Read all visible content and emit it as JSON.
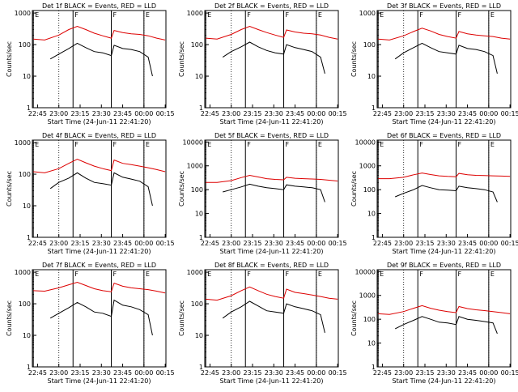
{
  "chart_data": [
    {
      "type": "line",
      "title": "Det 1f BLACK = Events, RED = LLD",
      "xlabel": "Start Time (24-Jun-11 22:41:20)",
      "ylabel": "Counts/sec",
      "x_ticks": [
        "22:45",
        "23:00",
        "23:15",
        "23:30",
        "23:45",
        "00:00",
        "00:15"
      ],
      "y_ticks": [
        "1",
        "10",
        "100",
        "1000"
      ],
      "ylim": [
        1,
        1200
      ],
      "yscale": "log",
      "markers": [
        {
          "time": "22:42",
          "label": "E"
        },
        {
          "time": "23:10",
          "label": "F"
        },
        {
          "time": "23:37",
          "label": "F"
        },
        {
          "time": "00:00",
          "label": "E"
        }
      ],
      "series": [
        {
          "name": "Events",
          "color": "#000000",
          "x": [
            "22:54",
            "23:00",
            "23:07",
            "23:13",
            "23:19",
            "23:25",
            "23:31",
            "23:37",
            "23:39",
            "23:45",
            "23:51",
            "23:57",
            "00:03",
            "00:06"
          ],
          "y": [
            35,
            50,
            75,
            110,
            80,
            60,
            55,
            45,
            95,
            75,
            70,
            60,
            40,
            10
          ]
        },
        {
          "name": "LLD",
          "color": "#dd0000",
          "x": [
            "22:42",
            "22:50",
            "23:00",
            "23:07",
            "23:13",
            "23:19",
            "23:25",
            "23:31",
            "23:37",
            "23:39",
            "23:45",
            "23:51",
            "23:57",
            "00:03",
            "00:09",
            "00:15"
          ],
          "y": [
            150,
            140,
            200,
            300,
            380,
            300,
            230,
            190,
            160,
            280,
            240,
            220,
            210,
            190,
            160,
            140
          ]
        }
      ]
    },
    {
      "type": "line",
      "title": "Det 2f BLACK = Events, RED = LLD",
      "xlabel": "Start Time (24-Jun-11 22:41:20)",
      "ylabel": "Counts/sec",
      "x_ticks": [
        "22:45",
        "23:00",
        "23:15",
        "23:30",
        "23:45",
        "00:00",
        "00:15"
      ],
      "y_ticks": [
        "1",
        "10",
        "100",
        "1000"
      ],
      "ylim": [
        1,
        1200
      ],
      "yscale": "log",
      "markers": [
        {
          "time": "22:42",
          "label": "E"
        },
        {
          "time": "23:10",
          "label": "F"
        },
        {
          "time": "23:37",
          "label": "F"
        },
        {
          "time": "00:00",
          "label": "E"
        }
      ],
      "series": [
        {
          "name": "Events",
          "color": "#000000",
          "x": [
            "22:54",
            "23:00",
            "23:07",
            "23:13",
            "23:19",
            "23:25",
            "23:31",
            "23:37",
            "23:39",
            "23:45",
            "23:51",
            "23:57",
            "00:03",
            "00:06"
          ],
          "y": [
            40,
            60,
            85,
            120,
            85,
            65,
            55,
            50,
            100,
            80,
            70,
            60,
            40,
            12
          ]
        },
        {
          "name": "LLD",
          "color": "#dd0000",
          "x": [
            "22:42",
            "22:50",
            "23:00",
            "23:07",
            "23:13",
            "23:19",
            "23:25",
            "23:31",
            "23:37",
            "23:39",
            "23:45",
            "23:51",
            "23:57",
            "00:03",
            "00:09",
            "00:15"
          ],
          "y": [
            160,
            150,
            210,
            300,
            380,
            300,
            240,
            200,
            170,
            290,
            250,
            230,
            220,
            200,
            170,
            150
          ]
        }
      ]
    },
    {
      "type": "line",
      "title": "Det 3f BLACK = Events, RED = LLD",
      "xlabel": "Start Time (24-Jun-11 22:41:20)",
      "ylabel": "Counts/sec",
      "x_ticks": [
        "22:45",
        "23:00",
        "23:15",
        "23:30",
        "23:45",
        "00:00",
        "00:15"
      ],
      "y_ticks": [
        "1",
        "10",
        "100",
        "1000"
      ],
      "ylim": [
        1,
        1200
      ],
      "yscale": "log",
      "markers": [
        {
          "time": "22:42",
          "label": "E"
        },
        {
          "time": "23:10",
          "label": "F"
        },
        {
          "time": "23:37",
          "label": "F"
        },
        {
          "time": "00:00",
          "label": "E"
        }
      ],
      "series": [
        {
          "name": "Events",
          "color": "#000000",
          "x": [
            "22:54",
            "23:00",
            "23:07",
            "23:13",
            "23:19",
            "23:25",
            "23:31",
            "23:37",
            "23:39",
            "23:45",
            "23:51",
            "23:57",
            "00:03",
            "00:06"
          ],
          "y": [
            35,
            55,
            80,
            110,
            80,
            60,
            55,
            50,
            95,
            75,
            70,
            60,
            45,
            12
          ]
        },
        {
          "name": "LLD",
          "color": "#dd0000",
          "x": [
            "22:42",
            "22:50",
            "23:00",
            "23:07",
            "23:13",
            "23:19",
            "23:25",
            "23:31",
            "23:37",
            "23:39",
            "23:45",
            "23:51",
            "23:57",
            "00:03",
            "00:09",
            "00:15"
          ],
          "y": [
            150,
            140,
            190,
            260,
            330,
            270,
            210,
            180,
            160,
            260,
            220,
            200,
            190,
            180,
            160,
            150
          ]
        }
      ]
    },
    {
      "type": "line",
      "title": "Det 4f BLACK = Events, RED = LLD",
      "xlabel": "Start Time (24-Jun-11 22:41:20)",
      "ylabel": "Counts/sec",
      "x_ticks": [
        "22:45",
        "23:00",
        "23:15",
        "23:30",
        "23:45",
        "00:00",
        "00:15"
      ],
      "y_ticks": [
        "1",
        "10",
        "100",
        "1000"
      ],
      "ylim": [
        1,
        1200
      ],
      "yscale": "log",
      "markers": [
        {
          "time": "22:42",
          "label": "E"
        },
        {
          "time": "23:10",
          "label": "F"
        },
        {
          "time": "23:37",
          "label": "F"
        },
        {
          "time": "00:00",
          "label": "E"
        }
      ],
      "series": [
        {
          "name": "Events",
          "color": "#000000",
          "x": [
            "22:54",
            "23:00",
            "23:07",
            "23:13",
            "23:19",
            "23:25",
            "23:31",
            "23:37",
            "23:39",
            "23:45",
            "23:51",
            "23:57",
            "00:03",
            "00:06"
          ],
          "y": [
            35,
            55,
            75,
            110,
            75,
            55,
            50,
            45,
            110,
            80,
            70,
            60,
            40,
            10
          ]
        },
        {
          "name": "LLD",
          "color": "#dd0000",
          "x": [
            "22:42",
            "22:50",
            "23:00",
            "23:07",
            "23:13",
            "23:19",
            "23:25",
            "23:31",
            "23:37",
            "23:39",
            "23:45",
            "23:51",
            "23:57",
            "00:03",
            "00:09",
            "00:15"
          ],
          "y": [
            120,
            110,
            150,
            220,
            300,
            230,
            180,
            150,
            130,
            280,
            220,
            200,
            180,
            160,
            140,
            120
          ]
        }
      ]
    },
    {
      "type": "line",
      "title": "Det 5f BLACK = Events, RED = LLD",
      "xlabel": "Start Time (24-Jun-11 22:41:20)",
      "ylabel": "Counts/sec",
      "x_ticks": [
        "22:45",
        "23:00",
        "23:15",
        "23:30",
        "23:45",
        "00:00",
        "00:15"
      ],
      "y_ticks": [
        "1",
        "10",
        "100",
        "1000",
        "10000"
      ],
      "ylim": [
        1,
        12000
      ],
      "yscale": "log",
      "markers": [
        {
          "time": "22:42",
          "label": "E"
        },
        {
          "time": "23:10",
          "label": "F"
        },
        {
          "time": "23:37",
          "label": "F"
        },
        {
          "time": "00:00",
          "label": "E"
        }
      ],
      "series": [
        {
          "name": "Events",
          "color": "#000000",
          "x": [
            "22:54",
            "23:00",
            "23:07",
            "23:13",
            "23:19",
            "23:25",
            "23:31",
            "23:37",
            "23:39",
            "23:45",
            "23:51",
            "23:57",
            "00:03",
            "00:06"
          ],
          "y": [
            80,
            100,
            130,
            170,
            140,
            120,
            110,
            100,
            160,
            140,
            130,
            120,
            100,
            30
          ]
        },
        {
          "name": "LLD",
          "color": "#dd0000",
          "x": [
            "22:42",
            "22:50",
            "23:00",
            "23:07",
            "23:13",
            "23:19",
            "23:25",
            "23:31",
            "23:37",
            "23:39",
            "23:45",
            "23:51",
            "23:57",
            "00:03",
            "00:09",
            "00:15"
          ],
          "y": [
            200,
            200,
            240,
            320,
            400,
            340,
            290,
            270,
            260,
            330,
            300,
            290,
            280,
            270,
            250,
            230
          ]
        }
      ]
    },
    {
      "type": "line",
      "title": "Det 6f BLACK = Events, RED = LLD",
      "xlabel": "Start Time (24-Jun-11 22:41:20)",
      "ylabel": "Counts/sec",
      "x_ticks": [
        "22:45",
        "23:00",
        "23:15",
        "23:30",
        "23:45",
        "00:00",
        "00:15"
      ],
      "y_ticks": [
        "1",
        "10",
        "100",
        "1000",
        "10000"
      ],
      "ylim": [
        1,
        12000
      ],
      "yscale": "log",
      "markers": [
        {
          "time": "22:42",
          "label": "E"
        },
        {
          "time": "23:10",
          "label": "F"
        },
        {
          "time": "23:37",
          "label": "F"
        },
        {
          "time": "00:00",
          "label": "E"
        }
      ],
      "series": [
        {
          "name": "Events",
          "color": "#000000",
          "x": [
            "22:54",
            "23:00",
            "23:07",
            "23:13",
            "23:19",
            "23:25",
            "23:31",
            "23:37",
            "23:39",
            "23:45",
            "23:51",
            "23:57",
            "00:03",
            "00:06"
          ],
          "y": [
            50,
            70,
            100,
            150,
            120,
            100,
            95,
            90,
            140,
            120,
            110,
            100,
            80,
            30
          ]
        },
        {
          "name": "LLD",
          "color": "#dd0000",
          "x": [
            "22:42",
            "22:50",
            "23:00",
            "23:07",
            "23:13",
            "23:19",
            "23:25",
            "23:31",
            "23:37",
            "23:39",
            "23:45",
            "23:51",
            "23:57",
            "00:03",
            "00:09",
            "00:15"
          ],
          "y": [
            290,
            290,
            330,
            420,
            500,
            430,
            380,
            360,
            350,
            480,
            420,
            400,
            390,
            380,
            370,
            360
          ]
        }
      ]
    },
    {
      "type": "line",
      "title": "Det 7f BLACK = Events, RED = LLD",
      "xlabel": "Start Time (24-Jun-11 22:41:20)",
      "ylabel": "Counts/sec",
      "x_ticks": [
        "22:45",
        "23:00",
        "23:15",
        "23:30",
        "23:45",
        "00:00",
        "00:15"
      ],
      "y_ticks": [
        "1",
        "10",
        "100",
        "1000"
      ],
      "ylim": [
        1,
        1200
      ],
      "yscale": "log",
      "markers": [
        {
          "time": "22:42",
          "label": "E"
        },
        {
          "time": "23:10",
          "label": "F"
        },
        {
          "time": "23:37",
          "label": "F"
        },
        {
          "time": "00:00",
          "label": "E"
        }
      ],
      "series": [
        {
          "name": "Events",
          "color": "#000000",
          "x": [
            "22:54",
            "23:00",
            "23:07",
            "23:13",
            "23:19",
            "23:25",
            "23:31",
            "23:37",
            "23:39",
            "23:45",
            "23:51",
            "23:57",
            "00:03",
            "00:06"
          ],
          "y": [
            35,
            50,
            75,
            110,
            80,
            55,
            50,
            40,
            130,
            90,
            80,
            65,
            45,
            10
          ]
        },
        {
          "name": "LLD",
          "color": "#dd0000",
          "x": [
            "22:42",
            "22:50",
            "23:00",
            "23:07",
            "23:13",
            "23:19",
            "23:25",
            "23:31",
            "23:37",
            "23:39",
            "23:45",
            "23:51",
            "23:57",
            "00:03",
            "00:09",
            "00:15"
          ],
          "y": [
            260,
            250,
            320,
            400,
            480,
            380,
            300,
            260,
            240,
            450,
            360,
            320,
            300,
            280,
            250,
            220
          ]
        }
      ]
    },
    {
      "type": "line",
      "title": "Det 8f BLACK = Events, RED = LLD",
      "xlabel": "Start Time (24-Jun-11 22:41:20)",
      "ylabel": "Counts/sec",
      "x_ticks": [
        "22:45",
        "23:00",
        "23:15",
        "23:30",
        "23:45",
        "00:00",
        "00:15"
      ],
      "y_ticks": [
        "1",
        "10",
        "100",
        "1000"
      ],
      "ylim": [
        1,
        1200
      ],
      "yscale": "log",
      "markers": [
        {
          "time": "22:42",
          "label": "E"
        },
        {
          "time": "23:10",
          "label": "F"
        },
        {
          "time": "23:37",
          "label": "F"
        },
        {
          "time": "00:00",
          "label": "E"
        }
      ],
      "series": [
        {
          "name": "Events",
          "color": "#000000",
          "x": [
            "22:54",
            "23:00",
            "23:07",
            "23:13",
            "23:19",
            "23:25",
            "23:31",
            "23:37",
            "23:39",
            "23:45",
            "23:51",
            "23:57",
            "00:03",
            "00:06"
          ],
          "y": [
            35,
            55,
            80,
            120,
            85,
            60,
            55,
            50,
            100,
            80,
            70,
            60,
            45,
            12
          ]
        },
        {
          "name": "LLD",
          "color": "#dd0000",
          "x": [
            "22:42",
            "22:50",
            "23:00",
            "23:07",
            "23:13",
            "23:19",
            "23:25",
            "23:31",
            "23:37",
            "23:39",
            "23:45",
            "23:51",
            "23:57",
            "00:03",
            "00:09",
            "00:15"
          ],
          "y": [
            140,
            130,
            180,
            260,
            340,
            260,
            200,
            170,
            150,
            290,
            230,
            210,
            190,
            170,
            150,
            140
          ]
        }
      ]
    },
    {
      "type": "line",
      "title": "Det 9f BLACK = Events, RED = LLD",
      "xlabel": "Start Time (24-Jun-11 22:41:20)",
      "ylabel": "Counts/sec",
      "x_ticks": [
        "22:45",
        "23:00",
        "23:15",
        "23:30",
        "23:45",
        "00:00",
        "00:15"
      ],
      "y_ticks": [
        "1",
        "10",
        "100",
        "1000",
        "10000"
      ],
      "ylim": [
        1,
        12000
      ],
      "yscale": "log",
      "markers": [
        {
          "time": "22:42",
          "label": "E"
        },
        {
          "time": "23:10",
          "label": "F"
        },
        {
          "time": "23:37",
          "label": "F"
        },
        {
          "time": "00:00",
          "label": "E"
        }
      ],
      "series": [
        {
          "name": "Events",
          "color": "#000000",
          "x": [
            "22:54",
            "23:00",
            "23:07",
            "23:13",
            "23:19",
            "23:25",
            "23:31",
            "23:37",
            "23:39",
            "23:45",
            "23:51",
            "23:57",
            "00:03",
            "00:06"
          ],
          "y": [
            40,
            60,
            90,
            130,
            100,
            75,
            70,
            60,
            130,
            100,
            90,
            80,
            70,
            25
          ]
        },
        {
          "name": "LLD",
          "color": "#dd0000",
          "x": [
            "22:42",
            "22:50",
            "23:00",
            "23:07",
            "23:13",
            "23:19",
            "23:25",
            "23:31",
            "23:37",
            "23:39",
            "23:45",
            "23:51",
            "23:57",
            "00:03",
            "00:09",
            "00:15"
          ],
          "y": [
            170,
            160,
            210,
            290,
            370,
            290,
            240,
            210,
            190,
            340,
            280,
            250,
            230,
            210,
            190,
            170
          ]
        }
      ]
    }
  ]
}
